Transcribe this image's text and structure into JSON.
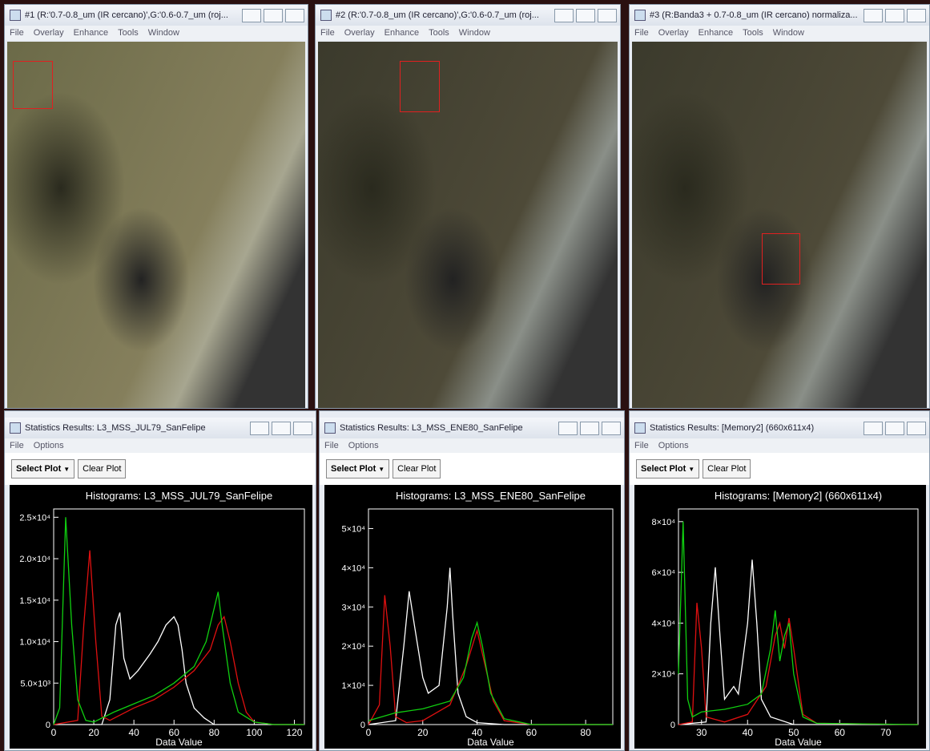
{
  "image_windows": [
    {
      "title": "#1 (R:'0.7-0.8_um (IR cercano)',G:'0.6-0.7_um (roj...",
      "menu": [
        "File",
        "Overlay",
        "Enhance",
        "Tools",
        "Window"
      ]
    },
    {
      "title": "#2 (R:'0.7-0.8_um (IR cercano)',G:'0.6-0.7_um (roj...",
      "menu": [
        "File",
        "Overlay",
        "Enhance",
        "Tools",
        "Window"
      ]
    },
    {
      "title": "#3 (R:Banda3 + 0.7-0.8_um (IR cercano) normaliza...",
      "menu": [
        "File",
        "Overlay",
        "Enhance",
        "Tools",
        "Window"
      ]
    }
  ],
  "stats_windows": [
    {
      "title": "Statistics Results: L3_MSS_JUL79_SanFelipe",
      "menu": [
        "File",
        "Options"
      ],
      "buttons": [
        "Select Plot",
        "Clear Plot"
      ]
    },
    {
      "title": "Statistics Results: L3_MSS_ENE80_SanFelipe",
      "menu": [
        "File",
        "Options"
      ],
      "buttons": [
        "Select Plot",
        "Clear Plot"
      ]
    },
    {
      "title": "Statistics Results: [Memory2] (660x611x4)",
      "menu": [
        "File",
        "Options"
      ],
      "buttons": [
        "Select Plot",
        "Clear Plot"
      ]
    }
  ],
  "chart_data": [
    {
      "type": "line",
      "title": "Histograms: L3_MSS_JUL79_SanFelipe",
      "x_label": "Data Value",
      "xlim": [
        0,
        125
      ],
      "xticks": [
        0,
        20,
        40,
        60,
        80,
        100,
        120
      ],
      "ylim": [
        0,
        26000
      ],
      "yticks": [
        0,
        {
          "value": 5000,
          "label": "5.0×10³"
        },
        {
          "value": 10000,
          "label": "1.0×10⁴"
        },
        {
          "value": 15000,
          "label": "1.5×10⁴"
        },
        {
          "value": 20000,
          "label": "2.0×10⁴"
        },
        {
          "value": 25000,
          "label": "2.5×10⁴"
        }
      ],
      "series": [
        {
          "color": "#ffffff",
          "x": [
            0,
            24,
            28,
            31,
            33,
            35,
            38,
            42,
            48,
            52,
            56,
            60,
            62,
            64,
            66,
            70,
            75,
            80,
            125
          ],
          "values": [
            0,
            0,
            3000,
            12000,
            13500,
            8000,
            5500,
            6500,
            8500,
            10000,
            12000,
            13000,
            12000,
            9000,
            5000,
            2000,
            800,
            0,
            0
          ]
        },
        {
          "color": "#e01010",
          "x": [
            0,
            12,
            15,
            18,
            21,
            24,
            28,
            40,
            50,
            60,
            70,
            78,
            82,
            85,
            88,
            92,
            96,
            100,
            110,
            125
          ],
          "values": [
            0,
            500,
            12000,
            21000,
            10000,
            1000,
            500,
            2000,
            3000,
            4500,
            6500,
            9000,
            12000,
            13000,
            10000,
            5000,
            1500,
            300,
            0,
            0
          ]
        },
        {
          "color": "#10d010",
          "x": [
            0,
            3,
            6,
            9,
            12,
            16,
            20,
            30,
            40,
            50,
            60,
            70,
            76,
            80,
            82,
            84,
            88,
            92,
            100,
            110,
            125
          ],
          "values": [
            0,
            2000,
            25000,
            12000,
            3000,
            500,
            300,
            1500,
            2500,
            3500,
            5000,
            7000,
            10000,
            14000,
            16000,
            12000,
            5000,
            1500,
            300,
            0,
            0
          ]
        }
      ]
    },
    {
      "type": "line",
      "title": "Histograms: L3_MSS_ENE80_SanFelipe",
      "x_label": "Data Value",
      "xlim": [
        0,
        90
      ],
      "xticks": [
        0,
        20,
        40,
        60,
        80
      ],
      "ylim": [
        0,
        55000
      ],
      "yticks": [
        0,
        {
          "value": 10000,
          "label": "1×10⁴"
        },
        {
          "value": 20000,
          "label": "2×10⁴"
        },
        {
          "value": 30000,
          "label": "3×10⁴"
        },
        {
          "value": 40000,
          "label": "4×10⁴"
        },
        {
          "value": 50000,
          "label": "5×10⁴"
        }
      ],
      "series": [
        {
          "color": "#ffffff",
          "x": [
            0,
            10,
            13,
            15,
            17,
            20,
            22,
            26,
            29,
            30,
            31,
            33,
            36,
            40,
            50,
            90
          ],
          "values": [
            0,
            1000,
            20000,
            34000,
            25000,
            12000,
            8000,
            10000,
            30000,
            40000,
            28000,
            8000,
            2000,
            500,
            0,
            0
          ]
        },
        {
          "color": "#e01010",
          "x": [
            0,
            4,
            6,
            8,
            10,
            14,
            20,
            30,
            36,
            40,
            42,
            46,
            50,
            60,
            90
          ],
          "values": [
            0,
            5000,
            33000,
            20000,
            2000,
            500,
            1000,
            5000,
            15000,
            24000,
            18000,
            6000,
            1000,
            0,
            0
          ]
        },
        {
          "color": "#10d010",
          "x": [
            0,
            5,
            10,
            20,
            30,
            35,
            38,
            40,
            42,
            45,
            50,
            60,
            90
          ],
          "values": [
            1000,
            2000,
            3000,
            4000,
            6000,
            12000,
            22000,
            26000,
            20000,
            8000,
            1500,
            0,
            0
          ]
        }
      ]
    },
    {
      "type": "line",
      "title": "Histograms: [Memory2] (660x611x4)",
      "x_label": "Data Value",
      "xlim": [
        25,
        77
      ],
      "xticks": [
        30,
        40,
        50,
        60,
        70
      ],
      "ylim": [
        0,
        85000
      ],
      "yticks": [
        0,
        {
          "value": 20000,
          "label": "2×10⁴"
        },
        {
          "value": 40000,
          "label": "4×10⁴"
        },
        {
          "value": 60000,
          "label": "6×10⁴"
        },
        {
          "value": 80000,
          "label": "8×10⁴"
        }
      ],
      "series": [
        {
          "color": "#ffffff",
          "x": [
            25,
            31,
            32,
            33,
            34,
            35,
            37,
            38,
            40,
            41,
            42,
            43,
            45,
            50,
            77
          ],
          "values": [
            0,
            1000,
            40000,
            62000,
            35000,
            10000,
            15000,
            12000,
            40000,
            65000,
            40000,
            10000,
            3000,
            0,
            0
          ]
        },
        {
          "color": "#e01010",
          "x": [
            25,
            28,
            29,
            30,
            31,
            35,
            40,
            44,
            46,
            47,
            48,
            49,
            50,
            52,
            55,
            77
          ],
          "values": [
            0,
            1000,
            48000,
            30000,
            3000,
            1000,
            4000,
            15000,
            35000,
            40000,
            30000,
            42000,
            30000,
            4000,
            500,
            0
          ]
        },
        {
          "color": "#10d010",
          "x": [
            25,
            26,
            27,
            28,
            30,
            35,
            40,
            43,
            45,
            46,
            47,
            48,
            49,
            50,
            52,
            55,
            77
          ],
          "values": [
            20000,
            80000,
            10000,
            3000,
            5000,
            6000,
            8000,
            12000,
            30000,
            45000,
            25000,
            35000,
            40000,
            20000,
            3000,
            500,
            0
          ]
        }
      ]
    }
  ]
}
